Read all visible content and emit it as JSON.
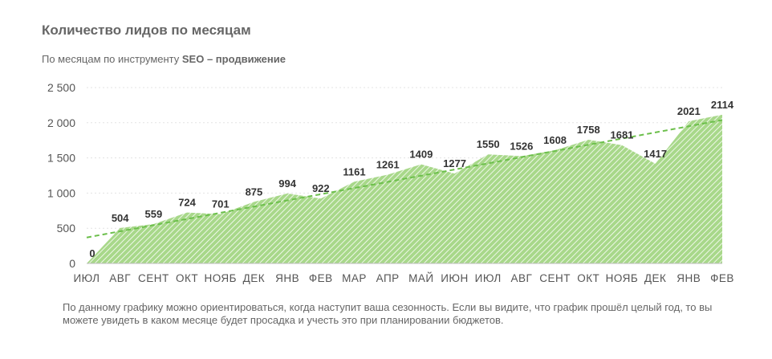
{
  "header": {
    "title": "Количество лидов по месяцам",
    "subtitle_prefix": "По месяцам по инструменту ",
    "subtitle_bold": "SEO – продвижение"
  },
  "note": "По данному графику можно ориентироваться, когда наступит ваша сезонность. Если вы видите, что график прошёл целый год, то вы можете увидеть в каком месяце будет просадка и учесть это при планировании бюджетов.",
  "colors": {
    "fill": "#a8d88a",
    "hatch": "#ffffff",
    "trend": "#6cbf4b",
    "axis": "#bdbdbd"
  },
  "chart_data": {
    "type": "area",
    "title": "Количество лидов по месяцам",
    "categories": [
      "ИЮЛ",
      "АВГ",
      "СЕНТ",
      "ОКТ",
      "НОЯБ",
      "ДЕК",
      "ЯНВ",
      "ФЕВ",
      "МАР",
      "АПР",
      "МАЙ",
      "ИЮН",
      "ИЮЛ",
      "АВГ",
      "СЕНТ",
      "ОКТ",
      "НОЯБ",
      "ДЕК",
      "ЯНВ",
      "ФЕВ"
    ],
    "values": [
      0,
      504,
      559,
      724,
      701,
      875,
      994,
      922,
      1161,
      1261,
      1409,
      1277,
      1550,
      1526,
      1608,
      1758,
      1681,
      1417,
      2021,
      2114
    ],
    "data_labels": [
      "0",
      "504",
      "559",
      "724",
      "701",
      "875",
      "994",
      "922",
      "1161",
      "1261",
      "1409",
      "1277",
      "1550",
      "1526",
      "1608",
      "1758",
      "1681",
      "1417",
      "2021",
      "2114"
    ],
    "ylim": [
      0,
      2500
    ],
    "yticks": [
      0,
      500,
      1000,
      1500,
      2000,
      2500
    ],
    "ytick_labels": [
      "0",
      "500",
      "1 000",
      "1 500",
      "2 000",
      "2 500"
    ],
    "trendline": {
      "type": "linear",
      "style": "dashed"
    },
    "grid": true,
    "legend": "none"
  }
}
